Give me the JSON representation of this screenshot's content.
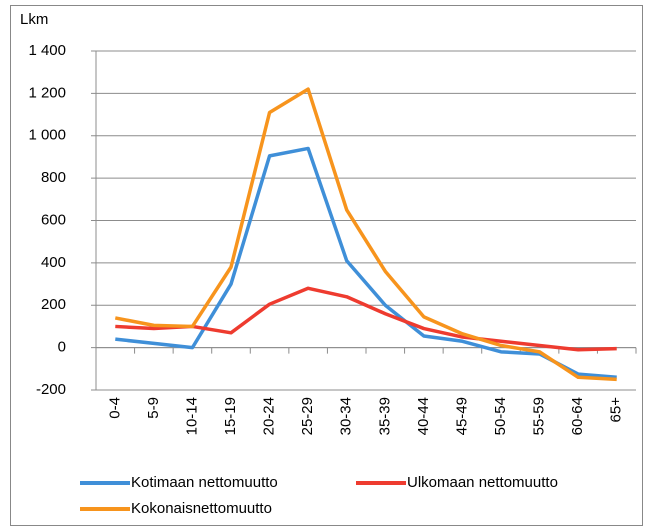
{
  "chart_data": {
    "type": "line",
    "y_label": "Lkm",
    "categories": [
      "0-4",
      "5-9",
      "10-14",
      "15-19",
      "20-24",
      "25-29",
      "30-34",
      "35-39",
      "40-44",
      "45-49",
      "50-54",
      "55-59",
      "60-64",
      "65+"
    ],
    "series": [
      {
        "name": "Kotimaan nettomuutto",
        "color": "#3f8fd8",
        "values": [
          40,
          20,
          0,
          300,
          905,
          940,
          410,
          200,
          55,
          30,
          -20,
          -30,
          -125,
          -140
        ]
      },
      {
        "name": "Ulkomaan nettomuutto",
        "color": "#ee3b2f",
        "values": [
          100,
          90,
          100,
          70,
          205,
          280,
          240,
          160,
          90,
          50,
          30,
          10,
          -10,
          -5
        ]
      },
      {
        "name": "Kokonaisnettomuutto",
        "color": "#f7941d",
        "values": [
          140,
          105,
          100,
          380,
          1110,
          1220,
          650,
          360,
          145,
          65,
          10,
          -20,
          -140,
          -150
        ]
      }
    ],
    "ylim": [
      -200,
      1400
    ],
    "yticks": [
      -200,
      0,
      200,
      400,
      600,
      {
        "value": 800,
        "label": "800"
      },
      {
        "value": 1000,
        "label": "1 000"
      },
      {
        "value": 1200,
        "label": "1 200"
      },
      {
        "value": 1400,
        "label": "1 400"
      }
    ],
    "grid": true
  }
}
